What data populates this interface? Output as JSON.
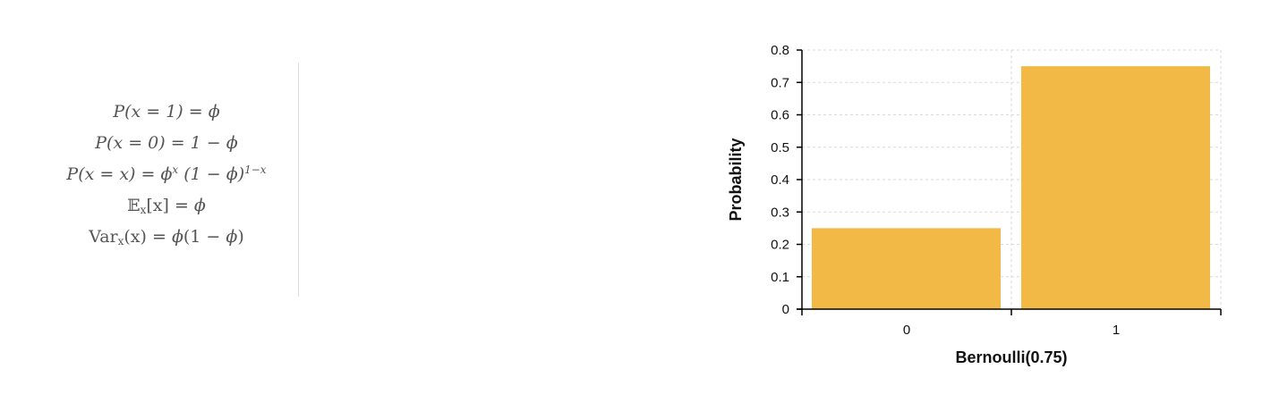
{
  "formulas": {
    "f1": {
      "lhs": "P(x = 1) = ",
      "phi": "ϕ"
    },
    "f2": {
      "lhs": "P(x = 0) = 1 − ",
      "phi": "ϕ"
    },
    "f3": {
      "lhs": "P(x = x) = ",
      "phi": "ϕ",
      "exp1": "x",
      "mid": " (1 − ",
      "phi2": "ϕ",
      "close": ")",
      "exp2": "1−x"
    },
    "f4": {
      "e": "𝔼",
      "sub": "x",
      "bracket": "[x] = ",
      "phi": "ϕ"
    },
    "f5": {
      "lhs": "Var",
      "sub": "x",
      "mid": "(x) = ",
      "phi": "ϕ",
      "paren": "(1 − ",
      "phi2": "ϕ",
      "close": ")"
    }
  },
  "chart_data": {
    "type": "bar",
    "categories": [
      "0",
      "1"
    ],
    "values": [
      0.25,
      0.75
    ],
    "xlabel": "Bernoulli(0.75)",
    "ylabel": "Probability",
    "ylim": [
      0,
      0.8
    ],
    "yticks": [
      0,
      0.1,
      0.2,
      0.3,
      0.4,
      0.5,
      0.6,
      0.7,
      0.8
    ],
    "ytick_labels": [
      "0",
      "0.1",
      "0.2",
      "0.3",
      "0.4",
      "0.5",
      "0.6",
      "0.7",
      "0.8"
    ],
    "grid": true,
    "bar_color": "#f3b946"
  }
}
